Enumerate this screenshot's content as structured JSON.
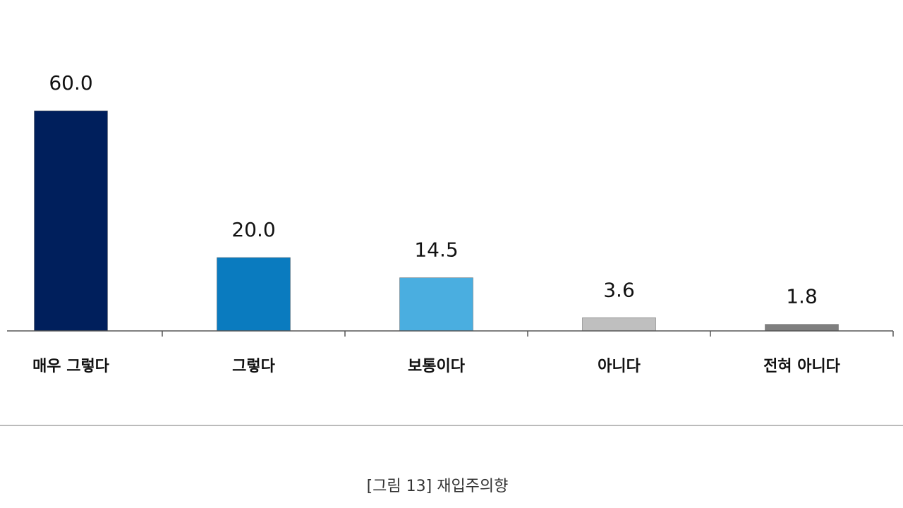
{
  "chart_data": {
    "type": "bar",
    "categories": [
      "매우 그렇다",
      "그렇다",
      "보통이다",
      "아니다",
      "전혀 아니다"
    ],
    "values": [
      60.0,
      20.0,
      14.5,
      3.6,
      1.8
    ],
    "value_labels": [
      "60.0",
      "20.0",
      "14.5",
      "3.6",
      "1.8"
    ],
    "colors": [
      "#001f5c",
      "#0a7bbf",
      "#4aaee0",
      "#bfbfbf",
      "#7f7f7f"
    ],
    "ylim": [
      0,
      60
    ],
    "caption": "[그림 13] 재입주의향"
  }
}
